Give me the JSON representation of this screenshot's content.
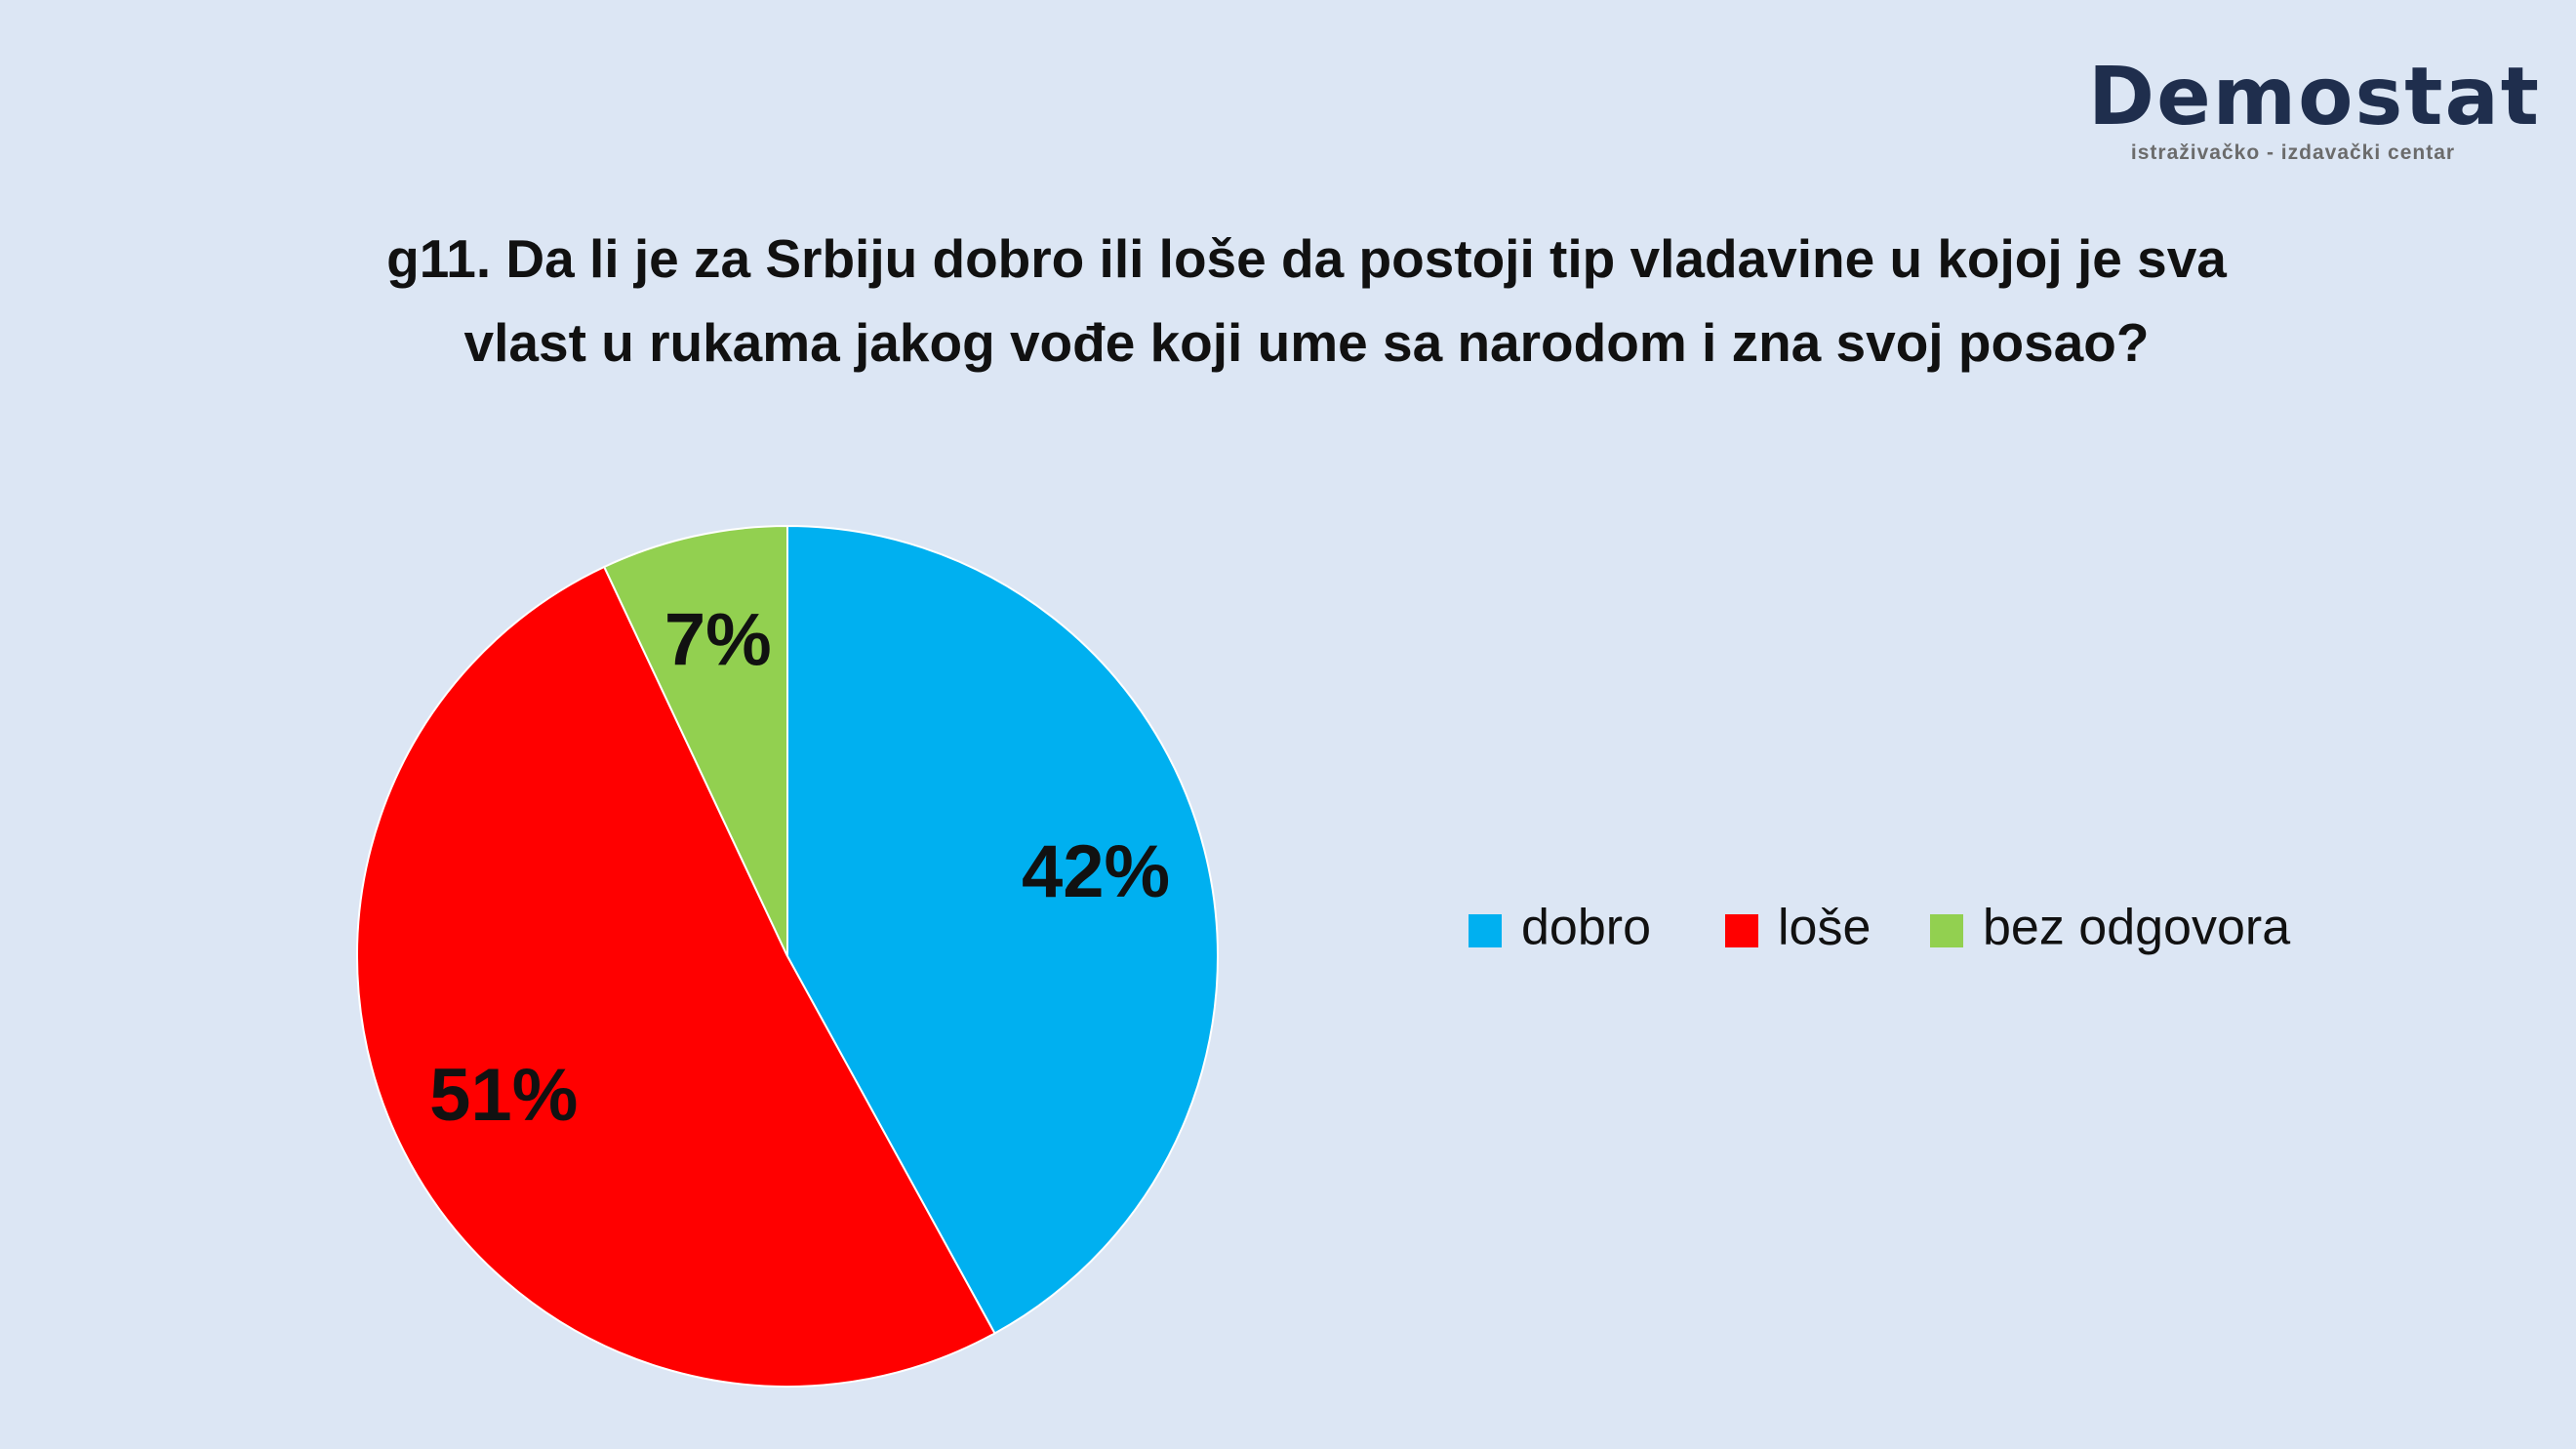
{
  "header": {
    "logo": "Demostat",
    "logo_subtitle": "istraživačko - izdavački centar"
  },
  "chart_data": {
    "type": "pie",
    "title": "g11. Da li je za Srbiju dobro ili loše da postoji tip vladavine u kojoj je sva vlast u rukama jakog vođe koji ume sa narodom i zna svoj posao?",
    "categories": [
      "dobro",
      "loše",
      "bez odgovora"
    ],
    "values": [
      42,
      51,
      7
    ],
    "value_labels": [
      "42%",
      "51%",
      "7%"
    ],
    "colors": [
      "#00b0f0",
      "#ff0000",
      "#92d050"
    ],
    "legend": "right"
  }
}
